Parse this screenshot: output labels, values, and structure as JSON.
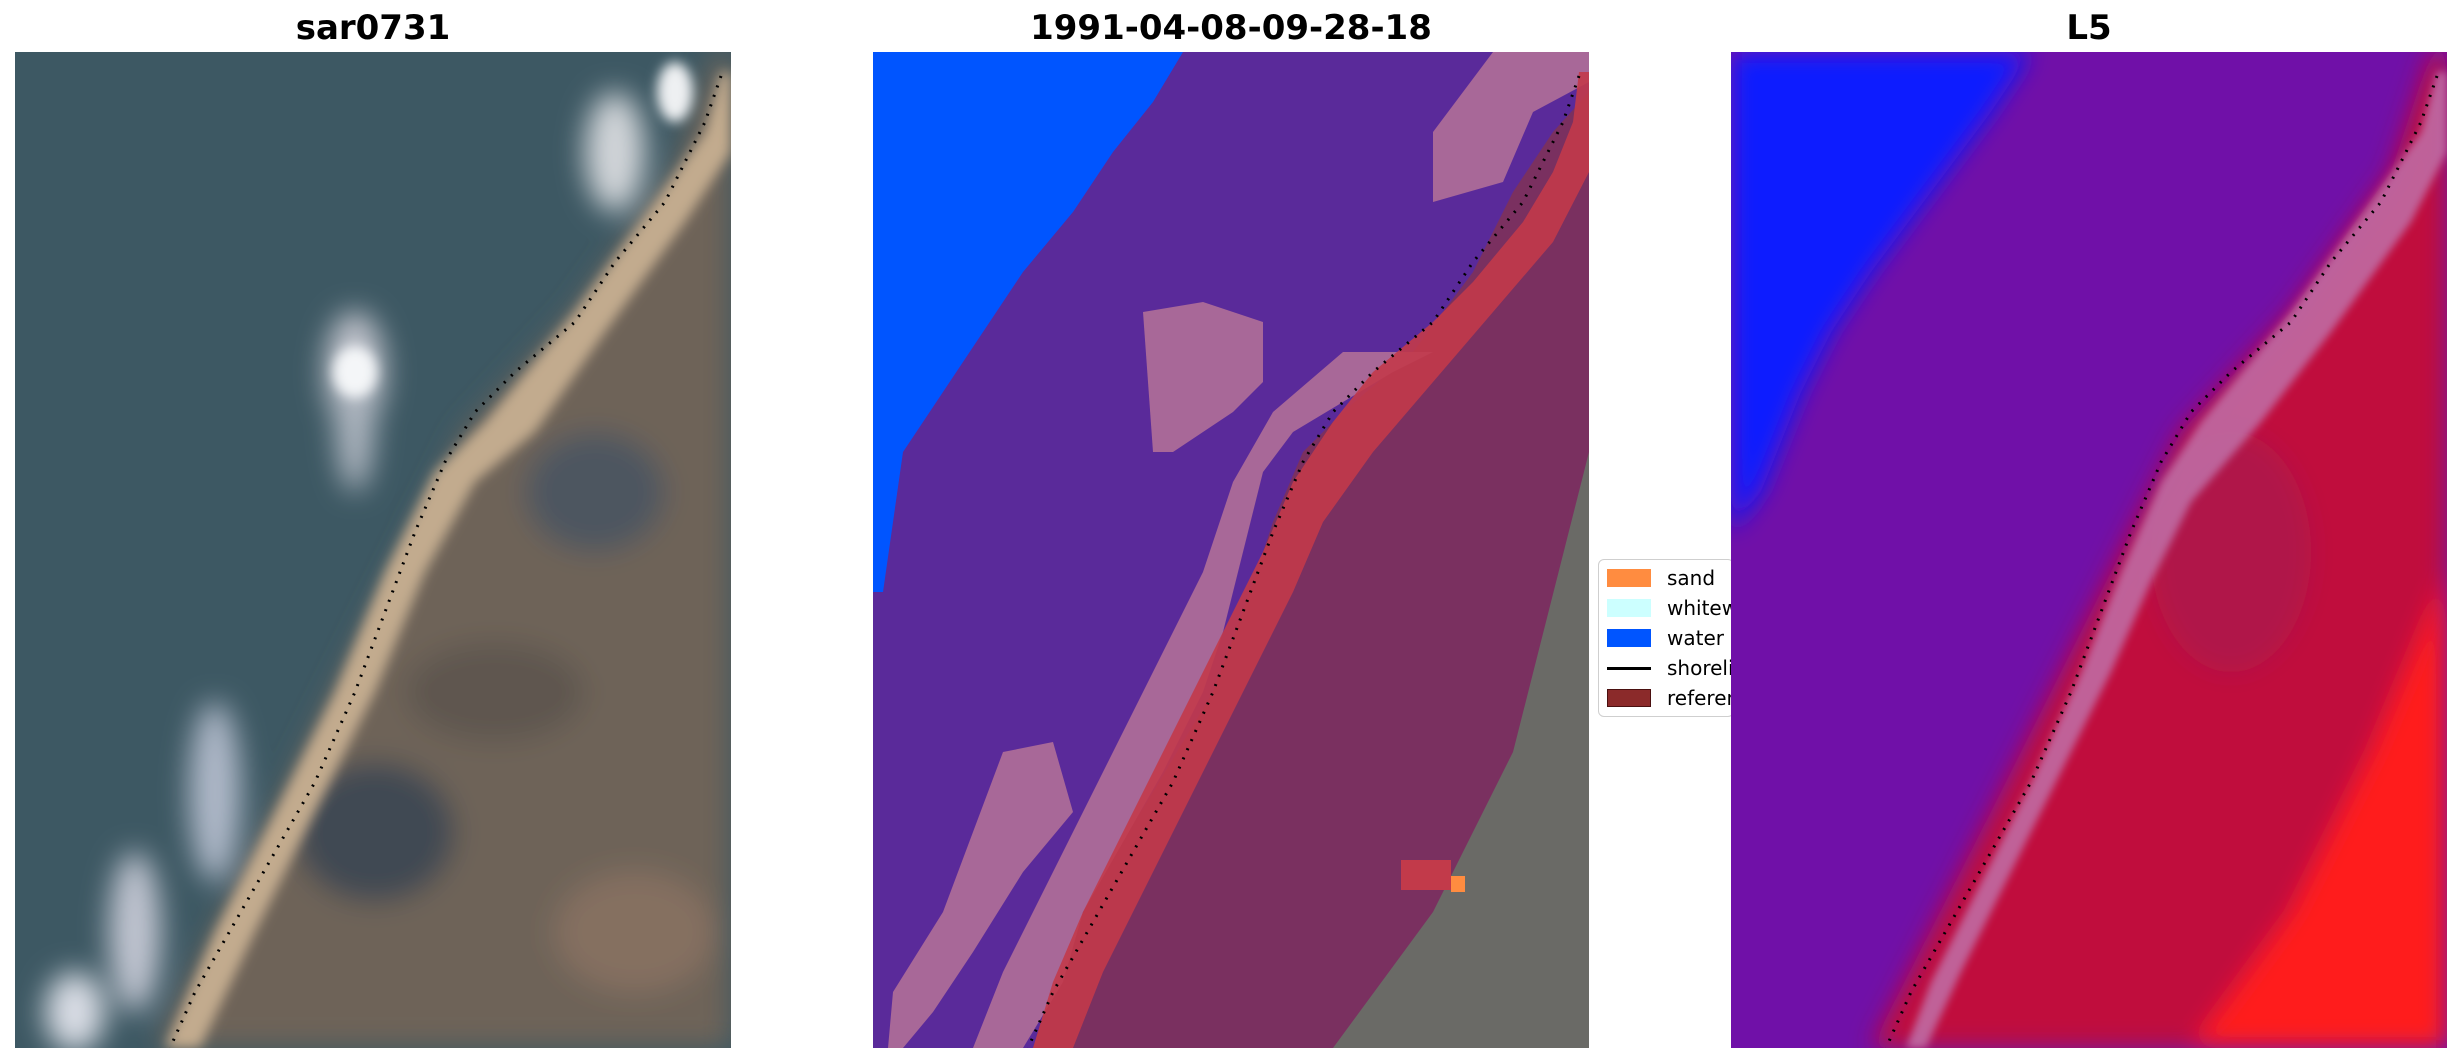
{
  "panels": [
    {
      "title": "sar0731"
    },
    {
      "title": "1991-04-08-09-28-18"
    },
    {
      "title": "L5"
    }
  ],
  "legend": {
    "items": [
      {
        "label": "sand",
        "color": "#ff8c40",
        "kind": "patch"
      },
      {
        "label": "whitewater",
        "color": "#ccffff",
        "kind": "patch"
      },
      {
        "label": "water",
        "color": "#0055ff",
        "kind": "patch"
      },
      {
        "label": "shoreline",
        "color": "#000000",
        "kind": "line"
      },
      {
        "label": "reference",
        "color": "#8b2a2a",
        "kind": "patch"
      }
    ]
  },
  "colors": {
    "rgb_water": "#3d5863",
    "rgb_land": "#6e6358",
    "rgb_beach": "#c2ab8e",
    "class_water": "#0055ff",
    "class_whitewater": "#a86898",
    "class_overlay": "#5a2a9a",
    "class_sand_edge": "#c23a4a",
    "class_land": "#7a3060",
    "class_bare_land": "#6a6a66",
    "mndwi_water": "#0a1aff",
    "mndwi_mid": "#7010a8",
    "mndwi_land": "#c0103c",
    "mndwi_high": "#ff1a1a",
    "shoreline": "#000000"
  }
}
